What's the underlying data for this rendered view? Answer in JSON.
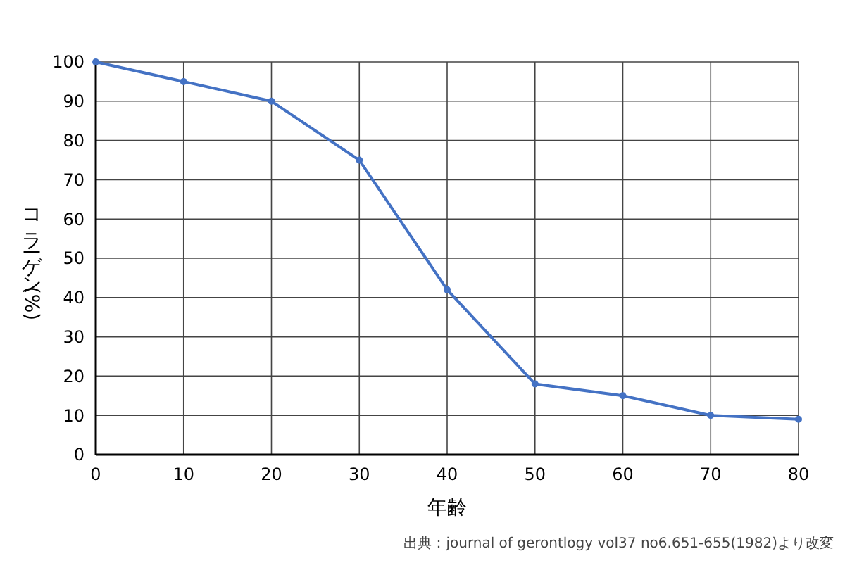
{
  "chart_data": {
    "type": "line",
    "xlabel": "年齢",
    "ylabel": "コラーゲン(%)",
    "x": [
      0,
      10,
      20,
      30,
      40,
      50,
      60,
      70,
      80
    ],
    "series": [
      {
        "color": "#4472c4",
        "values": [
          100,
          95,
          90,
          75,
          42,
          18,
          15,
          10,
          9
        ]
      }
    ],
    "xlim": [
      0,
      80
    ],
    "xticks": [
      0,
      10,
      20,
      30,
      40,
      50,
      60,
      70,
      80
    ],
    "ylim": [
      0,
      100
    ],
    "yticks": [
      0,
      10,
      20,
      30,
      40,
      50,
      60,
      70,
      80,
      90,
      100
    ],
    "grid": true,
    "marker": "circle",
    "line_style": "solid",
    "annotations": [
      "出典：journal of gerontlogy vol37 no6.651-655(1982)より改変"
    ]
  }
}
